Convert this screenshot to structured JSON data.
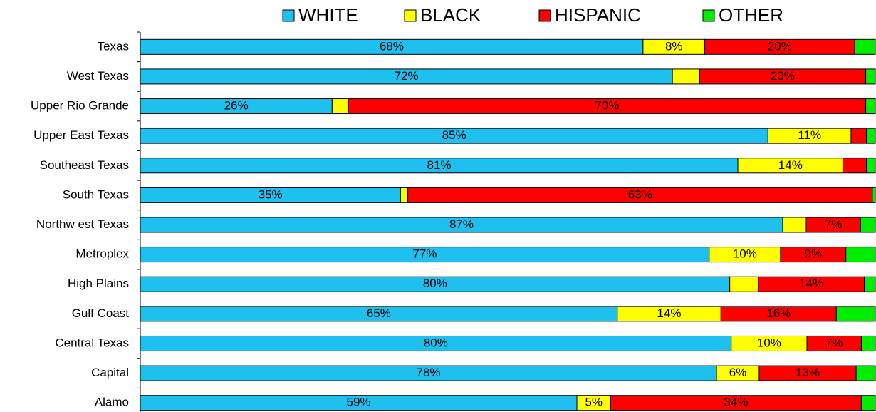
{
  "chart_data": {
    "type": "stacked_bar_horizontal",
    "categories": [
      "Texas",
      "West Texas",
      "Upper Rio Grande",
      "Upper East Texas",
      "Southeast Texas",
      "South Texas",
      "Northw est Texas",
      "Metroplex",
      "High Plains",
      "Gulf Coast",
      "Central Texas",
      "Capital",
      "Alamo"
    ],
    "xlim": [
      0,
      100
    ],
    "legend": "top",
    "series": [
      {
        "name": "WHITE",
        "color": "#1ec0f0",
        "values": [
          68.4,
          72.4,
          26.1,
          85.4,
          81.3,
          35.4,
          87.4,
          77.4,
          80.2,
          64.9,
          80.4,
          78.4,
          59.4
        ],
        "value_labels": [
          "68%",
          "72%",
          "26%",
          "85%",
          "81%",
          "35%",
          "87%",
          "77%",
          "80%",
          "65%",
          "80%",
          "78%",
          "59%"
        ]
      },
      {
        "name": "BLACK",
        "color": "#ffff00",
        "values": [
          8.4,
          3.7,
          2.2,
          11.3,
          14.3,
          1.0,
          3.2,
          9.7,
          3.9,
          14.1,
          10.3,
          5.8,
          4.6
        ],
        "value_labels": [
          "8%",
          null,
          null,
          "11%",
          "14%",
          null,
          null,
          "10%",
          null,
          "14%",
          "10%",
          "6%",
          "5%"
        ]
      },
      {
        "name": "HISPANIC",
        "color": "#ff0000",
        "values": [
          20.4,
          22.6,
          70.4,
          2.1,
          3.2,
          63.2,
          7.4,
          8.9,
          14.4,
          15.7,
          7.4,
          13.2,
          34.1
        ],
        "value_labels": [
          "20%",
          "23%",
          "70%",
          null,
          null,
          "63%",
          "7%",
          "9%",
          "14%",
          "16%",
          "7%",
          "13%",
          "34%"
        ]
      },
      {
        "name": "OTHER",
        "color": "#00ee00",
        "values": [
          2.8,
          1.3,
          1.3,
          1.2,
          1.2,
          0.4,
          2.0,
          4.0,
          1.5,
          5.3,
          1.9,
          2.6,
          1.9
        ],
        "value_labels": [
          null,
          null,
          null,
          null,
          null,
          null,
          null,
          null,
          null,
          null,
          null,
          null,
          null
        ]
      }
    ]
  }
}
